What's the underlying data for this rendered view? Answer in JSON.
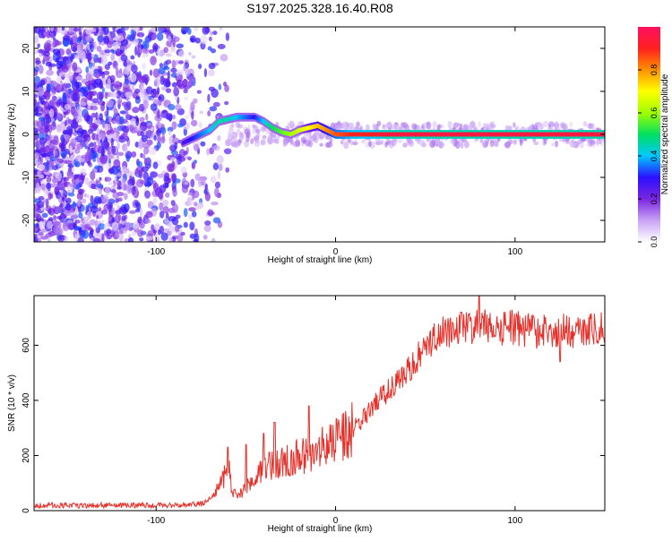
{
  "title": "S197.2025.328.16.40.R08",
  "chart_data": [
    {
      "type": "heatmap",
      "name": "spectrogram",
      "xlabel": "Height of straight line (km)",
      "ylabel": "Frequency (Hz)",
      "xlim": [
        -168,
        150
      ],
      "ylim": [
        -25,
        25
      ],
      "xticks": [
        -100,
        0,
        100
      ],
      "xtick_labels": [
        "-100",
        "0",
        "100"
      ],
      "yticks": [
        -20,
        -10,
        0,
        10,
        20
      ],
      "ytick_labels": [
        "-20",
        "-10",
        "0",
        "10",
        "20"
      ],
      "colorbar": {
        "label": "Normalized spectral amplitude",
        "range": [
          0,
          1
        ],
        "ticks": [
          0,
          0.2,
          0.4,
          0.6,
          0.8
        ],
        "tick_labels": [
          "0.0",
          "0.2",
          "0.4",
          "0.6",
          "0.8"
        ],
        "colors": [
          "#ffffff",
          "#c9a2f5",
          "#7a25e0",
          "#2c10ff",
          "#00c8ff",
          "#00e060",
          "#a0ff00",
          "#ffff00",
          "#ff9000",
          "#ff2020",
          "#ff1060"
        ]
      },
      "ridge": {
        "x": [
          -85,
          -80,
          -75,
          -70,
          -65,
          -60,
          -55,
          -50,
          -45,
          -40,
          -35,
          -30,
          -25,
          -20,
          -15,
          -10,
          -5,
          0,
          10,
          20,
          30,
          40,
          50,
          60,
          70,
          80,
          90,
          100,
          110,
          120,
          130,
          140,
          150
        ],
        "freq": [
          -2,
          -1,
          0,
          1,
          3,
          3.5,
          4,
          4,
          4,
          3,
          1.5,
          0.5,
          0,
          1,
          1.5,
          2,
          1,
          0,
          0,
          0,
          0,
          0,
          0,
          0,
          0,
          0,
          0,
          0,
          0,
          0,
          0,
          0,
          0
        ],
        "amplitude": [
          0.25,
          0.3,
          0.35,
          0.4,
          0.45,
          0.45,
          0.4,
          0.35,
          0.3,
          0.4,
          0.5,
          0.55,
          0.6,
          0.65,
          0.7,
          0.75,
          0.8,
          0.85,
          0.9,
          0.9,
          0.95,
          0.95,
          0.95,
          0.95,
          0.95,
          0.95,
          0.95,
          0.95,
          0.95,
          0.95,
          0.95,
          0.95,
          0.95
        ]
      },
      "noise_extent_x": [
        -168,
        -60
      ]
    },
    {
      "type": "line",
      "name": "snr",
      "xlabel": "Height of straight line (km)",
      "ylabel": "SNR (10 * v/v)",
      "xlim": [
        -168,
        150
      ],
      "ylim": [
        0,
        780
      ],
      "xticks": [
        -100,
        0,
        100
      ],
      "xtick_labels": [
        "-100",
        "0",
        "100"
      ],
      "yticks": [
        0,
        200,
        400,
        600
      ],
      "ytick_labels": [
        "0",
        "200",
        "400",
        "600"
      ],
      "color": "#e8302a",
      "series": [
        {
          "name": "SNR",
          "x": [
            -168,
            -160,
            -150,
            -140,
            -130,
            -120,
            -110,
            -100,
            -90,
            -80,
            -75,
            -70,
            -66,
            -62,
            -60,
            -58,
            -55,
            -50,
            -45,
            -40,
            -35,
            -30,
            -25,
            -20,
            -15,
            -10,
            -5,
            0,
            5,
            10,
            15,
            20,
            25,
            30,
            35,
            40,
            45,
            50,
            55,
            60,
            65,
            70,
            75,
            80,
            85,
            90,
            95,
            100,
            105,
            110,
            115,
            120,
            125,
            130,
            135,
            140,
            145,
            150
          ],
          "y": [
            18,
            20,
            18,
            19,
            20,
            18,
            20,
            19,
            20,
            22,
            25,
            40,
            80,
            120,
            190,
            80,
            50,
            80,
            110,
            150,
            170,
            170,
            190,
            200,
            210,
            220,
            230,
            250,
            280,
            300,
            330,
            370,
            410,
            440,
            480,
            510,
            550,
            590,
            620,
            650,
            660,
            670,
            670,
            665,
            670,
            665,
            660,
            665,
            655,
            650,
            650,
            650,
            650,
            650,
            655,
            650,
            655,
            660
          ]
        }
      ],
      "spikes": [
        {
          "x": -60,
          "y": 230
        },
        {
          "x": -50,
          "y": 240
        },
        {
          "x": -40,
          "y": 280
        },
        {
          "x": -34,
          "y": 320
        },
        {
          "x": -15,
          "y": 380
        },
        {
          "x": 70,
          "y": 720
        },
        {
          "x": 80,
          "y": 780
        },
        {
          "x": 125,
          "y": 540
        }
      ]
    }
  ]
}
